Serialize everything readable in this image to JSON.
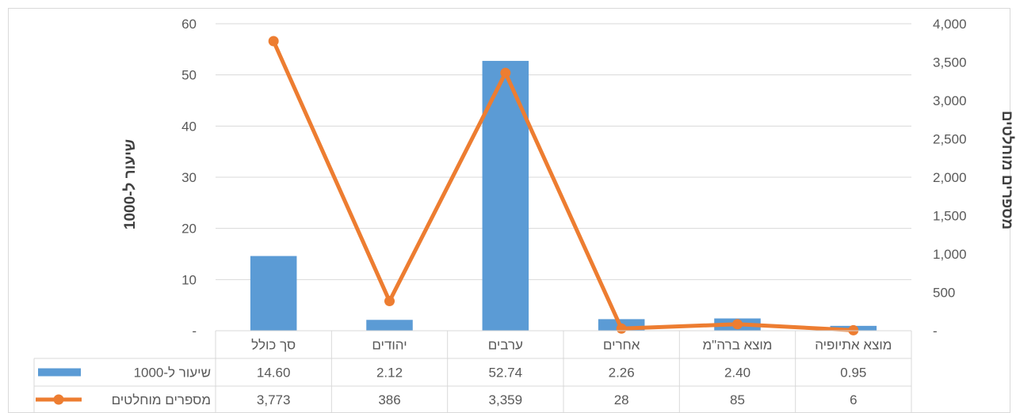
{
  "chart_data": {
    "type": "bar",
    "categories": [
      "סך כולל",
      "יהודים",
      "ערבים",
      "אחרים",
      "מוצא ברה\"מ",
      "מוצא אתיופיה"
    ],
    "series": [
      {
        "name": "שיעור ל-1000",
        "type": "bar",
        "axis": "left",
        "values": [
          14.6,
          2.12,
          52.74,
          2.26,
          2.4,
          0.95
        ],
        "labels": [
          "14.60",
          "2.12",
          "52.74",
          "2.26",
          "2.40",
          "0.95"
        ],
        "color": "#5B9BD5"
      },
      {
        "name": "מספרים מוחלטים",
        "type": "line",
        "axis": "right",
        "values": [
          3773,
          386,
          3359,
          28,
          85,
          6
        ],
        "labels": [
          "3,773",
          "386",
          "3,359",
          "28",
          "85",
          "6"
        ],
        "color": "#ED7D31"
      }
    ],
    "ylabel": "שיעור ל-1000",
    "y2label": "מספרים מוחלטים",
    "ylim": [
      0,
      60
    ],
    "y2lim": [
      0,
      4000
    ],
    "yticks": [
      "-",
      "10",
      "20",
      "30",
      "40",
      "50",
      "60"
    ],
    "y2ticks": [
      "-",
      "500",
      "1,000",
      "1,500",
      "2,000",
      "2,500",
      "3,000",
      "3,500",
      "4,000"
    ],
    "grid": true,
    "legend": "data-table"
  }
}
